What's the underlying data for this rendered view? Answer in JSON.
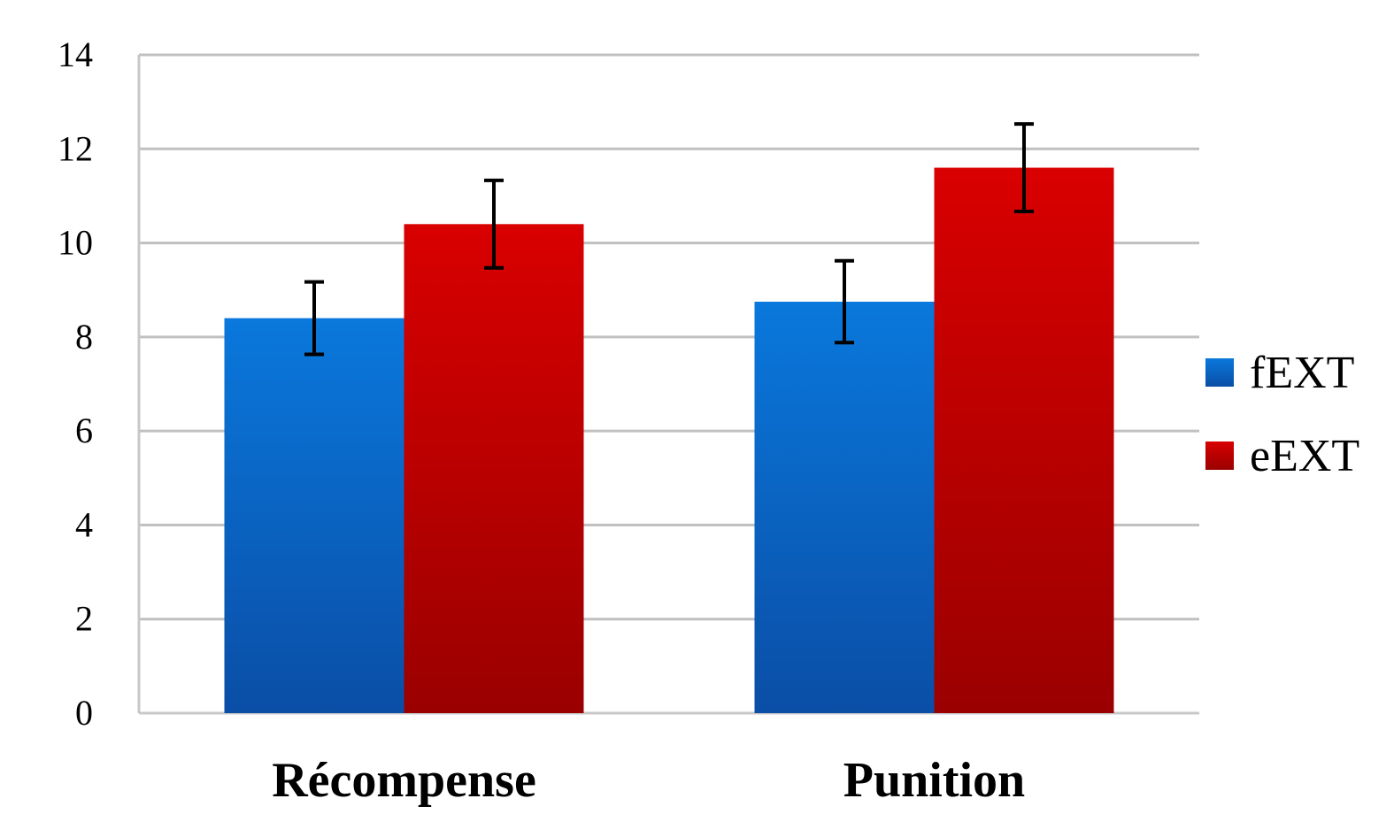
{
  "chart_data": {
    "type": "bar",
    "title": "",
    "xlabel": "",
    "ylabel": "",
    "categories": [
      "Récompense",
      "Punition"
    ],
    "series": [
      {
        "name": "fEXT",
        "values": [
          8.4,
          8.75
        ],
        "errors": [
          0.77,
          0.87
        ],
        "color_top": "#0a78dc",
        "color_bottom": "#0a4ea6"
      },
      {
        "name": "eEXT",
        "values": [
          10.4,
          11.6
        ],
        "errors": [
          0.93,
          0.93
        ],
        "color_top": "#d90000",
        "color_bottom": "#9a0000"
      }
    ],
    "ylim": [
      0,
      14
    ],
    "yticks": [
      0,
      2,
      4,
      6,
      8,
      10,
      12,
      14
    ],
    "grid": true,
    "legend_position": "right",
    "gridline_color": "#c0c0c0",
    "errorbar_color": "#000000"
  }
}
